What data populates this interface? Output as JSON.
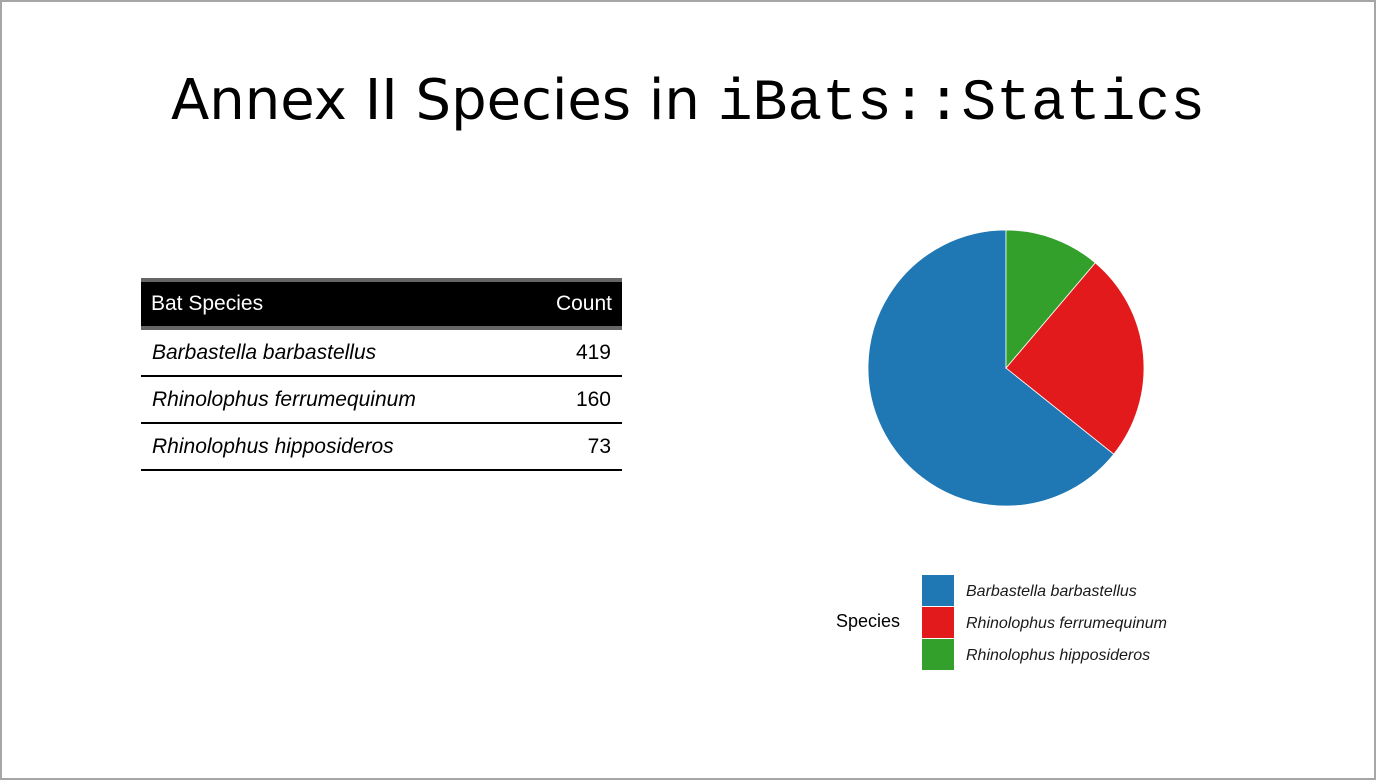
{
  "title": {
    "main": "Annex II Species in ",
    "code": "iBats::Statics"
  },
  "table": {
    "headers": [
      "Bat Species",
      "Count"
    ],
    "rows": [
      {
        "species": "Barbastella barbastellus",
        "count": "419"
      },
      {
        "species": "Rhinolophus ferrumequinum",
        "count": "160"
      },
      {
        "species": "Rhinolophus hipposideros",
        "count": "73"
      }
    ]
  },
  "chart_data": {
    "type": "pie",
    "categories": [
      "Barbastella barbastellus",
      "Rhinolophus ferrumequinum",
      "Rhinolophus hipposideros"
    ],
    "values": [
      419,
      160,
      73
    ],
    "colors": [
      "#1f78b4",
      "#e31a1c",
      "#33a02c"
    ],
    "legend_title": "Species",
    "legend_position": "bottom"
  }
}
